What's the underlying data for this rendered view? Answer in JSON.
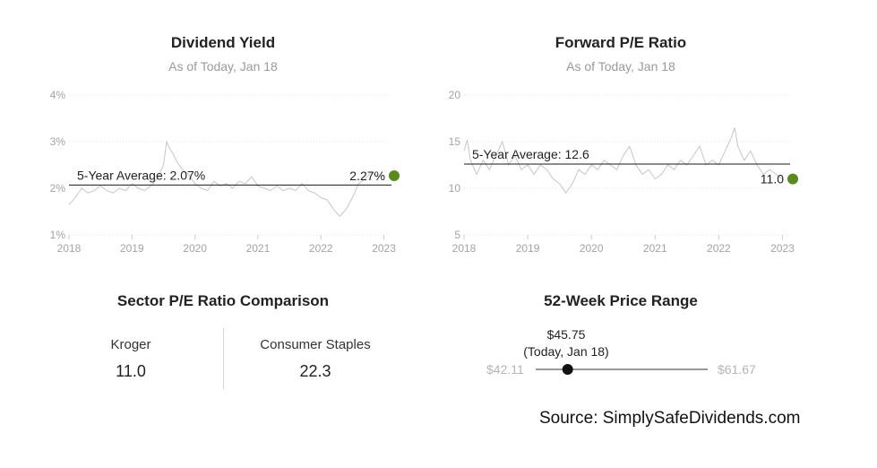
{
  "dividend_yield": {
    "title": "Dividend Yield",
    "subtitle": "As of Today, Jan 18",
    "average_label": "5-Year Average: 2.07%",
    "current_label": "2.27%"
  },
  "forward_pe": {
    "title": "Forward P/E Ratio",
    "subtitle": "As of Today, Jan 18",
    "average_label": "5-Year Average: 12.6",
    "current_label": "11.0"
  },
  "sector_comparison": {
    "title": "Sector P/E Ratio Comparison",
    "company_label": "Kroger",
    "company_value": "11.0",
    "sector_label": "Consumer Staples",
    "sector_value": "22.3"
  },
  "price_range": {
    "title": "52-Week Price Range",
    "current_price": "$45.75",
    "current_note": "(Today, Jan 18)",
    "low": "$42.11",
    "high": "$61.67",
    "low_value": 42.11,
    "high_value": 61.67,
    "current_value": 45.75
  },
  "source": "Source: SimplySafeDividends.com",
  "colors": {
    "line": "#c6c6c6",
    "average": "#1a1a1a",
    "current_dot": "#5a8a1e",
    "grid": "#e3e3e3"
  },
  "chart_data": [
    {
      "type": "line",
      "title": "Dividend Yield",
      "subtitle": "As of Today, Jan 18",
      "y_ticks": [
        "1%",
        "2%",
        "3%",
        "4%"
      ],
      "x_ticks": [
        "2018",
        "2019",
        "2020",
        "2021",
        "2022",
        "2023"
      ],
      "ylim": [
        1,
        4
      ],
      "xlim": [
        2018,
        2023.12
      ],
      "grid": true,
      "average": 2.07,
      "average_label": "5-Year Average: 2.07%",
      "current": 2.27,
      "current_label": "2.27%",
      "series": [
        {
          "x": [
            2018.0,
            2018.1,
            2018.2,
            2018.3,
            2018.4,
            2018.5,
            2018.6,
            2018.7,
            2018.8,
            2018.9,
            2019.0,
            2019.1,
            2019.2,
            2019.3,
            2019.4,
            2019.5,
            2019.55,
            2019.6,
            2019.65,
            2019.7,
            2019.8,
            2019.9,
            2020.0,
            2020.1,
            2020.2,
            2020.3,
            2020.4,
            2020.5,
            2020.6,
            2020.7,
            2020.8,
            2020.9,
            2021.0,
            2021.1,
            2021.2,
            2021.3,
            2021.4,
            2021.5,
            2021.6,
            2021.7,
            2021.8,
            2021.9,
            2022.0,
            2022.1,
            2022.2,
            2022.3,
            2022.4,
            2022.5,
            2022.6,
            2022.7,
            2022.8,
            2022.9,
            2023.0
          ],
          "values": [
            1.65,
            1.8,
            2.0,
            1.9,
            1.95,
            2.05,
            1.95,
            1.9,
            2.0,
            1.95,
            2.1,
            2.0,
            1.95,
            2.05,
            2.2,
            2.5,
            3.0,
            2.85,
            2.75,
            2.6,
            2.4,
            2.3,
            2.1,
            2.0,
            1.95,
            2.15,
            2.05,
            2.1,
            2.0,
            2.15,
            2.1,
            2.25,
            2.05,
            2.0,
            1.95,
            2.05,
            1.95,
            2.0,
            1.95,
            2.1,
            1.95,
            1.9,
            1.8,
            1.75,
            1.55,
            1.4,
            1.55,
            1.8,
            2.1,
            2.2,
            2.35,
            2.25,
            2.27
          ]
        }
      ]
    },
    {
      "type": "line",
      "title": "Forward P/E Ratio",
      "subtitle": "As of Today, Jan 18",
      "y_ticks": [
        "5",
        "10",
        "15",
        "20"
      ],
      "x_ticks": [
        "2018",
        "2019",
        "2020",
        "2021",
        "2022",
        "2023"
      ],
      "ylim": [
        5,
        20
      ],
      "xlim": [
        2018,
        2023.12
      ],
      "grid": true,
      "average": 12.6,
      "average_label": "5-Year Average: 12.6",
      "current": 11.0,
      "current_label": "11.0",
      "series": [
        {
          "x": [
            2018.0,
            2018.05,
            2018.1,
            2018.2,
            2018.3,
            2018.4,
            2018.5,
            2018.6,
            2018.7,
            2018.8,
            2018.9,
            2019.0,
            2019.1,
            2019.2,
            2019.3,
            2019.4,
            2019.5,
            2019.6,
            2019.7,
            2019.8,
            2019.9,
            2020.0,
            2020.1,
            2020.2,
            2020.3,
            2020.4,
            2020.5,
            2020.6,
            2020.7,
            2020.8,
            2020.9,
            2021.0,
            2021.1,
            2021.2,
            2021.3,
            2021.4,
            2021.5,
            2021.6,
            2021.7,
            2021.8,
            2021.9,
            2022.0,
            2022.1,
            2022.2,
            2022.25,
            2022.3,
            2022.4,
            2022.5,
            2022.6,
            2022.7,
            2022.8,
            2022.9,
            2023.0
          ],
          "values": [
            14.0,
            15.2,
            13.0,
            11.5,
            13.0,
            12.0,
            13.5,
            15.0,
            12.5,
            13.5,
            12.0,
            12.5,
            11.5,
            12.5,
            12.0,
            11.0,
            10.5,
            9.5,
            10.5,
            12.0,
            11.5,
            12.5,
            12.0,
            13.0,
            12.5,
            12.0,
            13.5,
            14.5,
            12.5,
            11.5,
            12.0,
            11.0,
            11.5,
            12.5,
            12.0,
            13.0,
            12.5,
            13.5,
            14.5,
            12.5,
            13.0,
            12.5,
            14.0,
            15.5,
            16.5,
            14.5,
            13.0,
            14.0,
            12.5,
            11.5,
            12.0,
            11.5,
            11.0
          ]
        }
      ]
    }
  ]
}
